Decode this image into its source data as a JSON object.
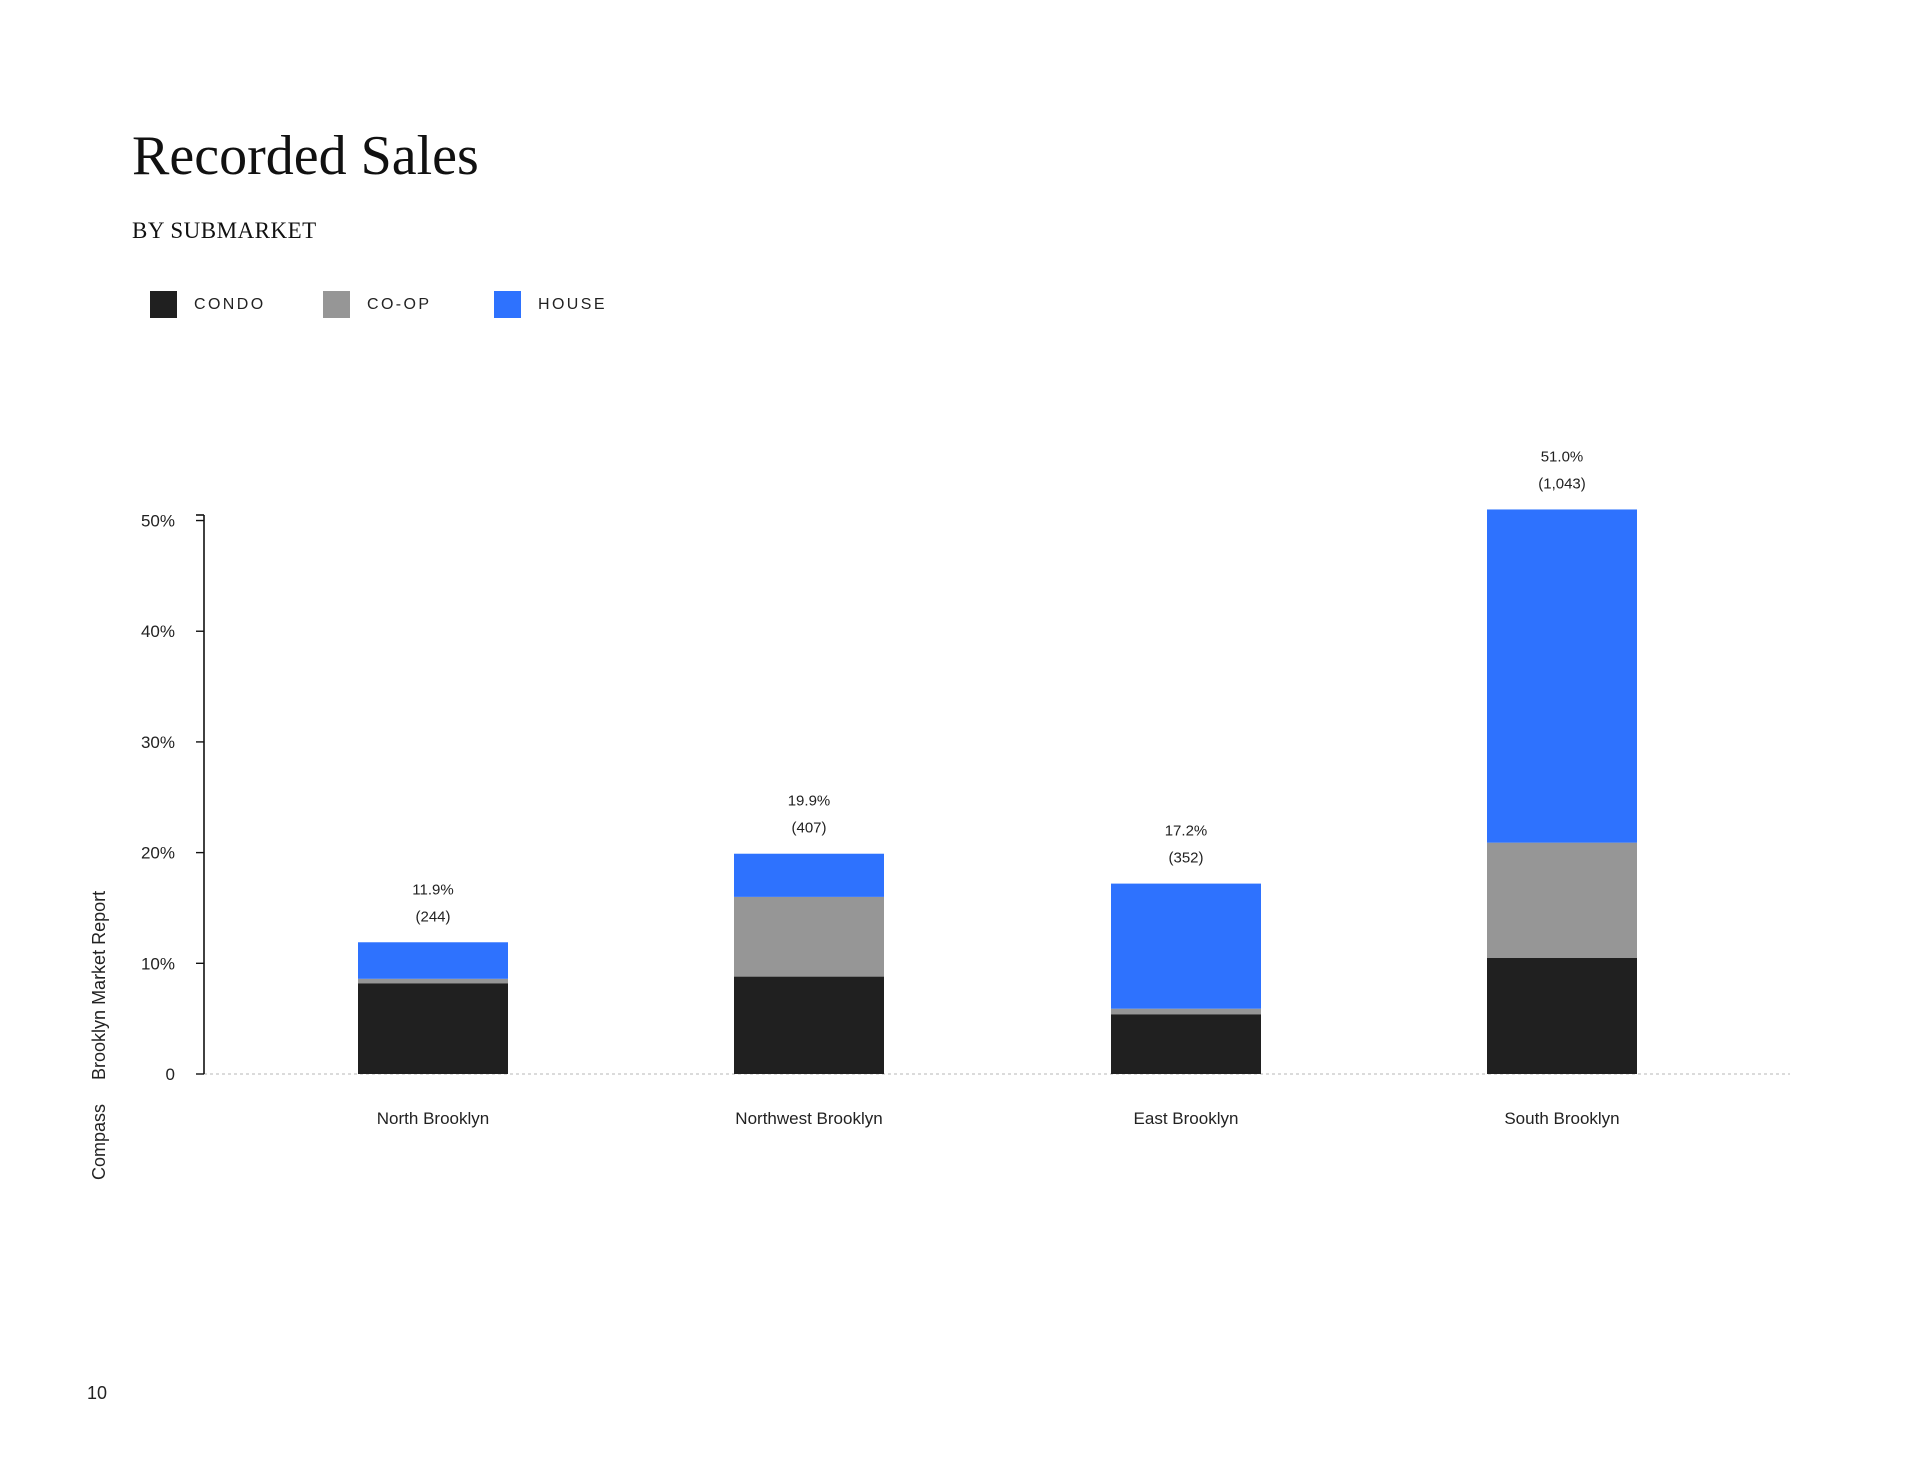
{
  "page": {
    "title": "Recorded Sales",
    "subtitle": "BY SUBMARKET",
    "side_brand": "Compass",
    "side_report": "Brooklyn Market Report",
    "page_number": "10"
  },
  "colors": {
    "condo": "#202020",
    "coop": "#969696",
    "house": "#2e72fe",
    "axis": "#111111",
    "baseline": "#cfcfcf"
  },
  "chart_data": {
    "type": "bar",
    "stacked": true,
    "title": "Recorded Sales",
    "subtitle": "BY SUBMARKET",
    "xlabel": "",
    "ylabel": "",
    "ylim": [
      0,
      50
    ],
    "y_ticks": [
      0,
      10,
      20,
      30,
      40,
      50
    ],
    "y_tick_labels": [
      "0",
      "10%",
      "20%",
      "30%",
      "40%",
      "50%"
    ],
    "categories": [
      "North Brooklyn",
      "Northwest Brooklyn",
      "East Brooklyn",
      "South Brooklyn"
    ],
    "series": [
      {
        "name": "CONDO",
        "color": "#202020",
        "values": [
          8.2,
          8.8,
          5.4,
          10.5
        ]
      },
      {
        "name": "CO-OP",
        "color": "#969696",
        "values": [
          0.4,
          7.2,
          0.5,
          10.4
        ]
      },
      {
        "name": "HOUSE",
        "color": "#2e72fe",
        "values": [
          3.3,
          3.9,
          11.3,
          30.1
        ]
      }
    ],
    "totals_pct": [
      "11.9%",
      "19.9%",
      "17.2%",
      "51.0%"
    ],
    "totals_count": [
      "(244)",
      "(407)",
      "(352)",
      "(1,043)"
    ],
    "legend_position": "top-left",
    "grid": false
  }
}
